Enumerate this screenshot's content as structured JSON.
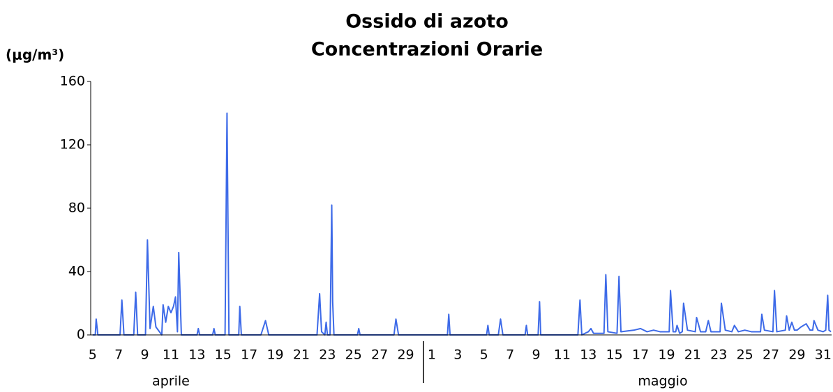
{
  "chart_data": {
    "type": "line",
    "title": "Ossido di azoto",
    "subtitle": "Concentrazioni Orarie",
    "y_label": "(μg/m³)",
    "x_groups": [
      "aprile",
      "maggio"
    ],
    "series": [
      {
        "name": "Ossido di azoto",
        "color": "#3d6ae8",
        "x": [
          0,
          0.2,
          0.27,
          0.4,
          0.5,
          2.1,
          2.24,
          2.4,
          3.15,
          3.3,
          3.45,
          4.05,
          4.2,
          4.4,
          4.65,
          4.85,
          5.3,
          5.4,
          5.6,
          5.8,
          6.0,
          6.2,
          6.35,
          6.5,
          6.6,
          6.8,
          8.0,
          8.1,
          8.2,
          9.2,
          9.3,
          9.4,
          10.15,
          10.3,
          10.45,
          11.2,
          11.28,
          11.4,
          12.9,
          13.25,
          13.5,
          17.2,
          17.4,
          17.55,
          17.8,
          17.9,
          18.0,
          18.2,
          18.33,
          18.4,
          18.5,
          20.3,
          20.4,
          20.5,
          23.1,
          23.25,
          23.45,
          27.2,
          27.3,
          27.4,
          30.2,
          30.3,
          30.4,
          31.1,
          31.27,
          31.45,
          33.15,
          33.25,
          33.35,
          34.15,
          34.26,
          34.35,
          37.2,
          37.36,
          37.5,
          38.0,
          38.2,
          38.4,
          39.2,
          39.34,
          39.5,
          40.2,
          40.35,
          40.5,
          41.5,
          42.0,
          42.5,
          43.0,
          43.5,
          44.2,
          44.3,
          44.5,
          44.7,
          44.8,
          45.0,
          45.2,
          45.3,
          45.6,
          46.2,
          46.3,
          46.6,
          47.0,
          47.2,
          47.4,
          48.1,
          48.2,
          48.5,
          49.0,
          49.2,
          49.5,
          50.0,
          50.5,
          51.2,
          51.3,
          51.5,
          52.15,
          52.27,
          52.45,
          53.1,
          53.2,
          53.4,
          53.6,
          53.8,
          54.0,
          54.3,
          54.7,
          55.0,
          55.2,
          55.3,
          55.6,
          56.0,
          56.2,
          56.35,
          56.45,
          56.6
        ],
        "values": [
          0,
          0,
          10,
          0,
          0,
          0,
          22,
          0,
          0,
          27,
          0,
          0,
          60,
          4,
          18,
          5,
          0,
          19,
          8,
          18,
          14,
          18,
          24,
          2,
          52,
          0,
          0,
          4,
          0,
          0,
          4,
          0,
          0,
          140,
          0,
          0,
          18,
          0,
          0,
          9,
          0,
          0,
          26,
          2,
          0,
          8,
          0,
          0,
          82,
          21,
          0,
          0,
          4,
          0,
          0,
          10,
          0,
          0,
          13,
          0,
          0,
          6,
          0,
          0,
          10,
          0,
          0,
          6,
          0,
          0,
          21,
          0,
          0,
          22,
          0,
          2,
          4,
          1,
          1,
          38,
          2,
          1,
          37,
          2,
          3,
          4,
          2,
          3,
          2,
          2,
          28,
          2,
          2,
          6,
          1,
          2,
          20,
          3,
          2,
          11,
          2,
          2,
          9,
          2,
          2,
          20,
          3,
          2,
          6,
          2,
          3,
          2,
          2,
          13,
          3,
          2,
          28,
          2,
          3,
          12,
          3,
          8,
          3,
          3,
          5,
          7,
          3,
          3,
          9,
          3,
          2,
          3,
          25,
          3,
          2
        ]
      }
    ],
    "xlim": [
      -0.15,
      56.65
    ],
    "ylim": [
      0,
      160
    ],
    "yticks": [
      0,
      40,
      80,
      120,
      160
    ],
    "xticks": [
      {
        "value": 0,
        "label": "5"
      },
      {
        "value": 2,
        "label": "7"
      },
      {
        "value": 4,
        "label": "9"
      },
      {
        "value": 6,
        "label": "11"
      },
      {
        "value": 8,
        "label": "13"
      },
      {
        "value": 10,
        "label": "15"
      },
      {
        "value": 12,
        "label": "17"
      },
      {
        "value": 14,
        "label": "19"
      },
      {
        "value": 16,
        "label": "21"
      },
      {
        "value": 18,
        "label": "23"
      },
      {
        "value": 20,
        "label": "25"
      },
      {
        "value": 22,
        "label": "27"
      },
      {
        "value": 24,
        "label": "29"
      },
      {
        "value": 26,
        "label": "1"
      },
      {
        "value": 28,
        "label": "3"
      },
      {
        "value": 30,
        "label": "5"
      },
      {
        "value": 32,
        "label": "7"
      },
      {
        "value": 34,
        "label": "9"
      },
      {
        "value": 36,
        "label": "11"
      },
      {
        "value": 38,
        "label": "13"
      },
      {
        "value": 40,
        "label": "15"
      },
      {
        "value": 42,
        "label": "17"
      },
      {
        "value": 44,
        "label": "19"
      },
      {
        "value": 46,
        "label": "21"
      },
      {
        "value": 48,
        "label": "23"
      },
      {
        "value": 50,
        "label": "25"
      },
      {
        "value": 52,
        "label": "27"
      },
      {
        "value": 54,
        "label": "29"
      },
      {
        "value": 56,
        "label": "31"
      }
    ],
    "grid": false
  }
}
